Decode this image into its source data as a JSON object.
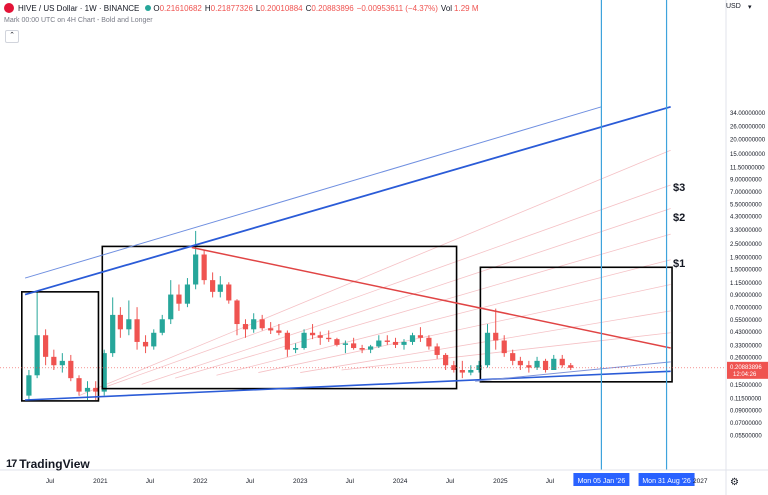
{
  "header": {
    "symbol": "HIVE / US Dollar · 1W · BINANCE",
    "open_label": "O",
    "open": "0.21610682",
    "high_label": "H",
    "high": "0.21877326",
    "low_label": "L",
    "low": "0.20010884",
    "close_label": "C",
    "close": "0.20883896",
    "change": "−0.00953611 (−4.37%)",
    "vol_label": "Vol",
    "vol": "1.29 M",
    "subtitle": "Mark 00:00 UTC on 4H Chart - Bold and Longer",
    "currency": "USD",
    "logo_text": "TradingView",
    "colors": {
      "up": "#26a69a",
      "down": "#ef5350",
      "accent": "#2962ff"
    }
  },
  "price_labels": [
    "34.00000000",
    "26.00000000",
    "20.00000000",
    "15.00000000",
    "11.50000000",
    "9.00000000",
    "7.00000000",
    "5.50000000",
    "4.30000000",
    "3.30000000",
    "2.50000000",
    "1.90000000",
    "1.50000000",
    "1.15000000",
    "0.90000000",
    "0.70000000",
    "0.55000000",
    "0.43000000",
    "0.33000000",
    "0.26000000",
    "0.20000000",
    "0.15000000",
    "0.11500000",
    "0.09000000",
    "0.07000000",
    "0.05500000"
  ],
  "time_labels": [
    "Jul",
    "2021",
    "Jul",
    "2022",
    "Jul",
    "2023",
    "Jul",
    "2024",
    "Jul",
    "2025",
    "Jul",
    "2027"
  ],
  "current_price": {
    "value": "0.20883896",
    "countdown": "12:04:26"
  },
  "date_badges": [
    "Mon 05 Jan '26",
    "Mon 31 Aug '26"
  ],
  "annotations": [
    "$3",
    "$2",
    "$1"
  ],
  "chart_data": {
    "type": "candlestick",
    "scale": "log",
    "ylim": [
      0.05,
      40
    ],
    "xlim": [
      "2020-03-01",
      "2027-03-01"
    ],
    "grid": false,
    "candles_monthly": [
      {
        "t": "2020-04",
        "o": 0.12,
        "h": 0.2,
        "l": 0.11,
        "c": 0.18
      },
      {
        "t": "2020-05",
        "o": 0.18,
        "h": 0.95,
        "l": 0.17,
        "c": 0.4
      },
      {
        "t": "2020-06",
        "o": 0.4,
        "h": 0.45,
        "l": 0.22,
        "c": 0.26
      },
      {
        "t": "2020-07",
        "o": 0.26,
        "h": 0.3,
        "l": 0.2,
        "c": 0.22
      },
      {
        "t": "2020-08",
        "o": 0.22,
        "h": 0.28,
        "l": 0.19,
        "c": 0.24
      },
      {
        "t": "2020-09",
        "o": 0.24,
        "h": 0.27,
        "l": 0.16,
        "c": 0.17
      },
      {
        "t": "2020-10",
        "o": 0.17,
        "h": 0.18,
        "l": 0.12,
        "c": 0.13
      },
      {
        "t": "2020-11",
        "o": 0.13,
        "h": 0.16,
        "l": 0.11,
        "c": 0.14
      },
      {
        "t": "2020-12",
        "o": 0.14,
        "h": 0.16,
        "l": 0.11,
        "c": 0.13
      },
      {
        "t": "2021-01",
        "o": 0.13,
        "h": 0.3,
        "l": 0.12,
        "c": 0.28
      },
      {
        "t": "2021-02",
        "o": 0.28,
        "h": 0.85,
        "l": 0.26,
        "c": 0.6
      },
      {
        "t": "2021-03",
        "o": 0.6,
        "h": 0.7,
        "l": 0.38,
        "c": 0.45
      },
      {
        "t": "2021-04",
        "o": 0.45,
        "h": 0.8,
        "l": 0.4,
        "c": 0.55
      },
      {
        "t": "2021-05",
        "o": 0.55,
        "h": 0.7,
        "l": 0.3,
        "c": 0.35
      },
      {
        "t": "2021-06",
        "o": 0.35,
        "h": 0.4,
        "l": 0.28,
        "c": 0.32
      },
      {
        "t": "2021-07",
        "o": 0.32,
        "h": 0.45,
        "l": 0.3,
        "c": 0.42
      },
      {
        "t": "2021-08",
        "o": 0.42,
        "h": 0.6,
        "l": 0.4,
        "c": 0.55
      },
      {
        "t": "2021-09",
        "o": 0.55,
        "h": 1.2,
        "l": 0.5,
        "c": 0.9
      },
      {
        "t": "2021-10",
        "o": 0.9,
        "h": 1.1,
        "l": 0.65,
        "c": 0.75
      },
      {
        "t": "2021-11",
        "o": 0.75,
        "h": 1.25,
        "l": 0.7,
        "c": 1.1
      },
      {
        "t": "2021-12",
        "o": 1.1,
        "h": 3.2,
        "l": 1.0,
        "c": 2.0
      },
      {
        "t": "2022-01",
        "o": 2.0,
        "h": 2.2,
        "l": 1.1,
        "c": 1.2
      },
      {
        "t": "2022-02",
        "o": 1.2,
        "h": 1.4,
        "l": 0.85,
        "c": 0.95
      },
      {
        "t": "2022-03",
        "o": 0.95,
        "h": 1.3,
        "l": 0.85,
        "c": 1.1
      },
      {
        "t": "2022-04",
        "o": 1.1,
        "h": 1.15,
        "l": 0.75,
        "c": 0.8
      },
      {
        "t": "2022-05",
        "o": 0.8,
        "h": 0.82,
        "l": 0.4,
        "c": 0.5
      },
      {
        "t": "2022-06",
        "o": 0.5,
        "h": 0.55,
        "l": 0.38,
        "c": 0.45
      },
      {
        "t": "2022-07",
        "o": 0.45,
        "h": 0.62,
        "l": 0.42,
        "c": 0.55
      },
      {
        "t": "2022-08",
        "o": 0.55,
        "h": 0.6,
        "l": 0.44,
        "c": 0.46
      },
      {
        "t": "2022-09",
        "o": 0.46,
        "h": 0.52,
        "l": 0.41,
        "c": 0.44
      },
      {
        "t": "2022-10",
        "o": 0.44,
        "h": 0.5,
        "l": 0.4,
        "c": 0.42
      },
      {
        "t": "2022-11",
        "o": 0.42,
        "h": 0.44,
        "l": 0.26,
        "c": 0.3
      },
      {
        "t": "2022-12",
        "o": 0.3,
        "h": 0.34,
        "l": 0.28,
        "c": 0.31
      },
      {
        "t": "2023-01",
        "o": 0.31,
        "h": 0.45,
        "l": 0.3,
        "c": 0.42
      },
      {
        "t": "2023-02",
        "o": 0.42,
        "h": 0.5,
        "l": 0.37,
        "c": 0.4
      },
      {
        "t": "2023-03",
        "o": 0.4,
        "h": 0.43,
        "l": 0.33,
        "c": 0.38
      },
      {
        "t": "2023-04",
        "o": 0.38,
        "h": 0.44,
        "l": 0.35,
        "c": 0.37
      },
      {
        "t": "2023-05",
        "o": 0.37,
        "h": 0.38,
        "l": 0.32,
        "c": 0.33
      },
      {
        "t": "2023-06",
        "o": 0.33,
        "h": 0.36,
        "l": 0.28,
        "c": 0.34
      },
      {
        "t": "2023-07",
        "o": 0.34,
        "h": 0.38,
        "l": 0.3,
        "c": 0.31
      },
      {
        "t": "2023-08",
        "o": 0.31,
        "h": 0.33,
        "l": 0.28,
        "c": 0.3
      },
      {
        "t": "2023-09",
        "o": 0.3,
        "h": 0.33,
        "l": 0.28,
        "c": 0.32
      },
      {
        "t": "2023-10",
        "o": 0.32,
        "h": 0.4,
        "l": 0.31,
        "c": 0.36
      },
      {
        "t": "2023-11",
        "o": 0.36,
        "h": 0.4,
        "l": 0.33,
        "c": 0.35
      },
      {
        "t": "2023-12",
        "o": 0.35,
        "h": 0.38,
        "l": 0.31,
        "c": 0.33
      },
      {
        "t": "2024-01",
        "o": 0.33,
        "h": 0.37,
        "l": 0.3,
        "c": 0.35
      },
      {
        "t": "2024-02",
        "o": 0.35,
        "h": 0.42,
        "l": 0.33,
        "c": 0.4
      },
      {
        "t": "2024-03",
        "o": 0.4,
        "h": 0.47,
        "l": 0.35,
        "c": 0.38
      },
      {
        "t": "2024-04",
        "o": 0.38,
        "h": 0.4,
        "l": 0.3,
        "c": 0.32
      },
      {
        "t": "2024-05",
        "o": 0.32,
        "h": 0.34,
        "l": 0.25,
        "c": 0.27
      },
      {
        "t": "2024-06",
        "o": 0.27,
        "h": 0.28,
        "l": 0.2,
        "c": 0.22
      },
      {
        "t": "2024-07",
        "o": 0.22,
        "h": 0.24,
        "l": 0.19,
        "c": 0.2
      },
      {
        "t": "2024-08",
        "o": 0.2,
        "h": 0.24,
        "l": 0.17,
        "c": 0.19
      },
      {
        "t": "2024-09",
        "o": 0.19,
        "h": 0.22,
        "l": 0.18,
        "c": 0.2
      },
      {
        "t": "2024-10",
        "o": 0.2,
        "h": 0.24,
        "l": 0.19,
        "c": 0.22
      },
      {
        "t": "2024-11",
        "o": 0.22,
        "h": 0.5,
        "l": 0.21,
        "c": 0.42
      },
      {
        "t": "2024-12",
        "o": 0.42,
        "h": 0.68,
        "l": 0.3,
        "c": 0.36
      },
      {
        "t": "2025-01",
        "o": 0.36,
        "h": 0.4,
        "l": 0.26,
        "c": 0.28
      },
      {
        "t": "2025-02",
        "o": 0.28,
        "h": 0.3,
        "l": 0.22,
        "c": 0.24
      },
      {
        "t": "2025-03",
        "o": 0.24,
        "h": 0.26,
        "l": 0.2,
        "c": 0.22
      },
      {
        "t": "2025-04",
        "o": 0.22,
        "h": 0.24,
        "l": 0.19,
        "c": 0.21
      },
      {
        "t": "2025-05",
        "o": 0.21,
        "h": 0.26,
        "l": 0.2,
        "c": 0.24
      },
      {
        "t": "2025-06",
        "o": 0.24,
        "h": 0.25,
        "l": 0.19,
        "c": 0.2
      },
      {
        "t": "2025-07",
        "o": 0.2,
        "h": 0.27,
        "l": 0.2,
        "c": 0.25
      },
      {
        "t": "2025-08",
        "o": 0.25,
        "h": 0.27,
        "l": 0.21,
        "c": 0.22
      },
      {
        "t": "2025-09",
        "o": 0.22,
        "h": 0.23,
        "l": 0.2,
        "c": 0.209
      }
    ],
    "drawings": {
      "rectangles": [
        {
          "t0": "2020-03-20",
          "t1": "2020-12-25",
          "p_low": 0.108,
          "p_high": 0.95
        },
        {
          "t0": "2021-01-08",
          "t1": "2024-07-25",
          "p_low": 0.138,
          "p_high": 2.35
        },
        {
          "t0": "2024-10-20",
          "t1": "2026-09-20",
          "p_low": 0.158,
          "p_high": 1.55
        }
      ],
      "lines": [
        {
          "kind": "red-main",
          "t0": "2021-12-01",
          "p0": 2.3,
          "t1": "2026-09-15",
          "p1": 0.31
        },
        {
          "kind": "blue-bottom",
          "t0": "2020-04-01",
          "p0": 0.11,
          "t1": "2026-09-15",
          "p1": 0.195
        },
        {
          "kind": "blue-bottom-2",
          "t0": "2024-10-01",
          "p0": 0.16,
          "t1": "2026-09-15",
          "p1": 0.235
        },
        {
          "kind": "blue-top",
          "t0": "2020-04-01",
          "p0": 0.9,
          "t1": "2026-09-15",
          "p1": 38
        },
        {
          "kind": "blue-top-thin",
          "t0": "2020-04-01",
          "p0": 1.25,
          "t1": "2026-01-05",
          "p1": 38
        }
      ],
      "vertical_markers": [
        "2026-01-05",
        "2026-08-31"
      ]
    }
  }
}
